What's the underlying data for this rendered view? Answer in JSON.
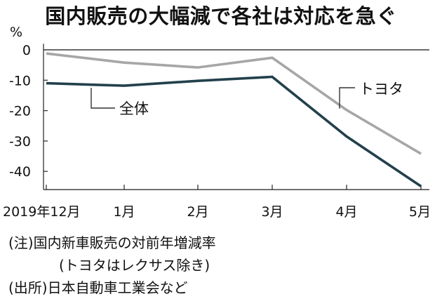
{
  "title": "国内販売の大幅減で各社は対応を急ぐ",
  "unit_label": "%",
  "notes": {
    "note1": "(注)国内新車販売の対前年増減率",
    "note2": "(トヨタはレクサス除き)",
    "source": "(出所)日本自動車工業会など"
  },
  "colors": {
    "total": "#23404c",
    "toyota": "#a6a6a6",
    "axis": "#333333",
    "zero_line": "#111111"
  },
  "chart_data": {
    "type": "line",
    "title": "国内販売の大幅減で各社は対応を急ぐ",
    "ylabel": "%",
    "categories": [
      "2019年12月",
      "1月",
      "2月",
      "3月",
      "4月",
      "5月"
    ],
    "yticks": [
      0,
      -10,
      -20,
      -30,
      -40
    ],
    "ytick_labels": [
      "0",
      "-10",
      "-20",
      "-30",
      "-40"
    ],
    "ylim": [
      -46,
      2
    ],
    "grid": false,
    "series": [
      {
        "name": "全体",
        "values": [
          -11,
          -11.8,
          -10.2,
          -8.9,
          -28.5,
          -44.9
        ]
      },
      {
        "name": "トヨタ",
        "values": [
          -1.2,
          -4.2,
          -5.8,
          -2.6,
          -19.8,
          -34.2
        ]
      }
    ]
  }
}
